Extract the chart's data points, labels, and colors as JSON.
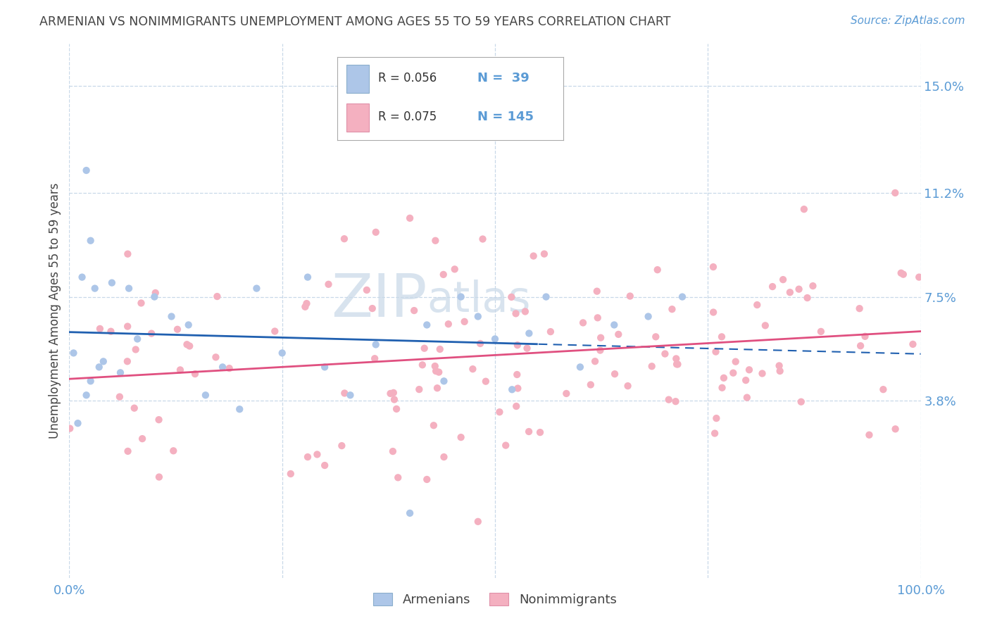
{
  "title": "ARMENIAN VS NONIMMIGRANTS UNEMPLOYMENT AMONG AGES 55 TO 59 YEARS CORRELATION CHART",
  "source": "Source: ZipAtlas.com",
  "ylabel": "Unemployment Among Ages 55 to 59 years",
  "xlim": [
    0,
    100
  ],
  "ylim": [
    -2.5,
    16.5
  ],
  "yticks_right": [
    3.8,
    7.5,
    11.2,
    15.0
  ],
  "watermark_zip": "ZIP",
  "watermark_atlas": "atlas",
  "legend_armenian_R": "R = 0.056",
  "legend_armenian_N": "N =  39",
  "legend_nonimm_R": "R = 0.075",
  "legend_nonimm_N": "N = 145",
  "armenian_color": "#adc6e8",
  "nonimm_color": "#f4b0c0",
  "armenian_line_color": "#2060b0",
  "nonimm_line_color": "#e05080",
  "background_color": "#ffffff",
  "grid_color": "#c8d8e8",
  "title_color": "#444444",
  "right_label_color": "#5b9bd5",
  "legend_text_color": "#5b9bd5",
  "seed": 99,
  "armenian_N": 39,
  "nonimm_N": 145,
  "arm_trend_start_y": 5.5,
  "arm_trend_end_y": 7.2,
  "nonimm_trend_start_y": 4.8,
  "nonimm_trend_end_y": 6.0
}
